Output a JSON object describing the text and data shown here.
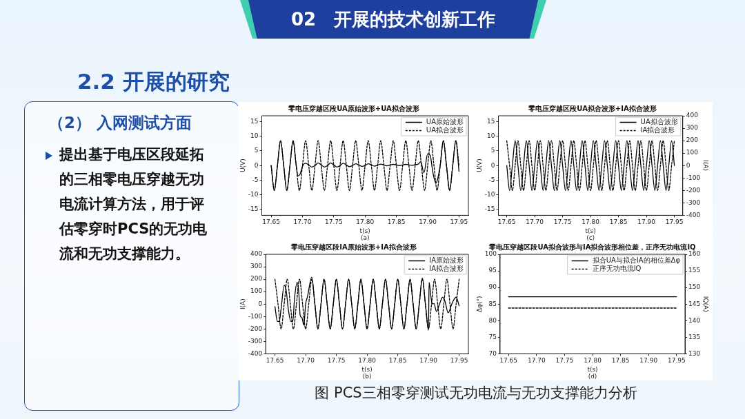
{
  "chart_data": [
    {
      "type": "other",
      "title": "02　开展的技术创新工作",
      "subtitle": "2.2 开展的研究",
      "annotations": [
        "（2） 入网测试方面",
        "提出基于电压区段延拓的三相零电压穿越无功电流计算方法，用于评估零穿时PCS的无功电流和无功支撑能力。",
        "图  PCS三相零穿测试无功电流与无功支撑能力分析"
      ]
    },
    {
      "type": "line",
      "title": "零电压穿越区段UA原始波形+UA拟合波形",
      "xlabel": "t(s)",
      "ylabel": "U(V)",
      "annotations": [
        "(a)"
      ],
      "legend": "top right",
      "xlim": [
        17.635,
        17.965
      ],
      "xticks": [
        17.65,
        {
          "value": 17.7,
          "label": "17.70"
        },
        17.75,
        {
          "value": 17.8,
          "label": "17.80"
        },
        17.85,
        {
          "value": 17.9,
          "label": "17.90"
        },
        17.95
      ],
      "ylim": [
        -17,
        17
      ],
      "yticks": [
        -15,
        -10,
        -5,
        0,
        5,
        10,
        15
      ],
      "series": [
        {
          "name": "UA原始波形",
          "color": "#000000",
          "line_style": "solid",
          "x": [
            17.65,
            17.655,
            17.66,
            17.665,
            17.67,
            17.675,
            17.68,
            17.685,
            17.69,
            17.693,
            17.696,
            17.7,
            17.705,
            17.71,
            17.715,
            17.72,
            17.725,
            17.73,
            17.735,
            17.74,
            17.745,
            17.75,
            17.755,
            17.76,
            17.765,
            17.77,
            17.775,
            17.78,
            17.785,
            17.79,
            17.795,
            17.8,
            17.805,
            17.81,
            17.815,
            17.82,
            17.825,
            17.83,
            17.835,
            17.84,
            17.845,
            17.85,
            17.855,
            17.86,
            17.865,
            17.87,
            17.875,
            17.88,
            17.885,
            17.889,
            17.894,
            17.9,
            17.904,
            17.908,
            17.913,
            17.92,
            17.925,
            17.93,
            17.935,
            17.94,
            17.945,
            17.95
          ],
          "values": [
            0,
            -8.5,
            0,
            8.5,
            0,
            -8.5,
            0,
            8.5,
            0,
            -3.5,
            -3,
            -0.3,
            0.8,
            0.2,
            -0.5,
            0,
            0.9,
            0.2,
            -0.5,
            0,
            0.9,
            0.2,
            -0.5,
            0,
            0.8,
            0.2,
            -0.4,
            0,
            0.6,
            0.2,
            -0.3,
            0,
            0.6,
            0.2,
            -0.2,
            0.1,
            0.5,
            0.2,
            -0.1,
            0.2,
            0.4,
            0.2,
            0,
            0.2,
            0.4,
            0.2,
            0.1,
            0.3,
            0.5,
            1.3,
            -2.5,
            4,
            3.5,
            -2,
            -6,
            0,
            8.5,
            0,
            -8.5,
            0,
            8.5,
            -2
          ]
        },
        {
          "name": "UA拟合波形",
          "color": "#000000",
          "line_style": "dashed",
          "x": [
            17.65,
            17.655,
            17.66,
            17.665,
            17.67,
            17.675,
            17.68,
            17.685,
            17.69,
            17.695,
            17.7,
            17.705,
            17.71,
            17.715,
            17.72,
            17.725,
            17.73,
            17.735,
            17.74,
            17.745,
            17.75,
            17.755,
            17.76,
            17.765,
            17.77,
            17.775,
            17.78,
            17.785,
            17.79,
            17.795,
            17.8,
            17.805,
            17.81,
            17.815,
            17.82,
            17.825,
            17.83,
            17.835,
            17.84,
            17.845,
            17.85,
            17.855,
            17.86,
            17.865,
            17.87,
            17.875,
            17.88,
            17.885,
            17.89,
            17.895,
            17.9,
            17.905,
            17.91,
            17.915,
            17.92,
            17.925,
            17.93,
            17.935,
            17.94,
            17.945,
            17.95
          ],
          "values": [
            0,
            -8.5,
            0,
            8.5,
            0,
            -8.5,
            0,
            8.5,
            0,
            -8.5,
            0,
            8.5,
            0,
            -8.5,
            0,
            8.5,
            0,
            -8.5,
            0,
            8.5,
            0,
            -8.5,
            0,
            8.5,
            0,
            -8.5,
            0,
            8.5,
            0,
            -8.5,
            0,
            8.5,
            0,
            -8.5,
            0,
            8.5,
            0,
            -8.5,
            0,
            8.5,
            0,
            -8.5,
            0,
            8.5,
            0,
            -8.5,
            0,
            8.5,
            0,
            -8.5,
            0,
            8.5,
            0,
            -8.5,
            0,
            8.5,
            0,
            -8.5,
            0,
            8.5,
            0
          ]
        }
      ]
    },
    {
      "type": "line",
      "title": "零电压穿越区段UA拟合波形+IA拟合波形",
      "xlabel": "t(s)",
      "ylabel": "U(V)",
      "y2label": "I(A)",
      "annotations": [
        "(c)"
      ],
      "legend": "top right",
      "xlim": [
        17.635,
        17.965
      ],
      "xticks": [
        17.65,
        {
          "value": 17.7,
          "label": "17.70"
        },
        17.75,
        {
          "value": 17.8,
          "label": "17.80"
        },
        17.85,
        {
          "value": 17.9,
          "label": "17.90"
        },
        17.95
      ],
      "ylim": [
        -17,
        17
      ],
      "yticks": [
        -15,
        -10,
        -5,
        0,
        5,
        10,
        15
      ],
      "y2lim": [
        -400,
        400
      ],
      "y2ticks": [
        -400,
        -300,
        -200,
        -100,
        0,
        100,
        200,
        300,
        400
      ],
      "x": [
        17.65,
        17.655,
        17.66,
        17.665,
        17.67,
        17.675,
        17.68,
        17.685,
        17.69,
        17.695,
        17.7,
        17.705,
        17.71,
        17.715,
        17.72,
        17.725,
        17.73,
        17.735,
        17.74,
        17.745,
        17.75,
        17.755,
        17.76,
        17.765,
        17.77,
        17.775,
        17.78,
        17.785,
        17.79,
        17.795,
        17.8,
        17.805,
        17.81,
        17.815,
        17.82,
        17.825,
        17.83,
        17.835,
        17.84,
        17.845,
        17.85,
        17.855,
        17.86,
        17.865,
        17.87,
        17.875,
        17.88,
        17.885,
        17.89,
        17.895,
        17.9,
        17.905,
        17.91,
        17.915,
        17.92,
        17.925,
        17.93,
        17.935,
        17.94,
        17.945,
        17.95
      ],
      "series": [
        {
          "name": "UA拟合波形",
          "color": "#000000",
          "line_style": "solid",
          "values": [
            0,
            -8.5,
            0,
            8.5,
            0,
            -8.5,
            0,
            8.5,
            0,
            -8.5,
            0,
            8.5,
            0,
            -8.5,
            0,
            8.5,
            0,
            -8.5,
            0,
            8.5,
            0,
            -8.5,
            0,
            8.5,
            0,
            -8.5,
            0,
            8.5,
            0,
            -8.5,
            0,
            8.5,
            0,
            -8.5,
            0,
            8.5,
            0,
            -8.5,
            0,
            8.5,
            0,
            -8.5,
            0,
            8.5,
            0,
            -8.5,
            0,
            8.5,
            0,
            -8.5,
            0,
            8.5,
            0,
            -8.5,
            0,
            8.5,
            0,
            -8.5,
            0,
            8.5,
            0
          ]
        },
        {
          "name": "IA拟合波形",
          "color": "#000000",
          "line_style": "dashed",
          "axis": "y2",
          "values": [
            200,
            0,
            -200,
            0,
            200,
            0,
            -200,
            0,
            200,
            0,
            -200,
            0,
            200,
            0,
            -200,
            0,
            200,
            0,
            -200,
            0,
            200,
            0,
            -200,
            0,
            200,
            0,
            -200,
            0,
            200,
            0,
            -200,
            0,
            200,
            0,
            -200,
            0,
            200,
            0,
            -200,
            0,
            200,
            0,
            -200,
            0,
            200,
            0,
            -200,
            0,
            200,
            0,
            -200,
            0,
            200,
            0,
            -200,
            0,
            200,
            0,
            -200,
            0,
            200
          ]
        }
      ]
    },
    {
      "type": "line",
      "title": "零电压穿越区段IA原始波形+IA拟合波形",
      "xlabel": "t(s)",
      "ylabel": "I(A)",
      "annotations": [
        "(b)"
      ],
      "legend": "top right",
      "xlim": [
        17.635,
        17.965
      ],
      "xticks": [
        17.65,
        {
          "value": 17.7,
          "label": "17.70"
        },
        17.75,
        {
          "value": 17.8,
          "label": "17.80"
        },
        17.85,
        {
          "value": 17.9,
          "label": "17.90"
        },
        17.95
      ],
      "ylim": [
        -400,
        400
      ],
      "yticks": [
        -400,
        -300,
        -200,
        -100,
        0,
        100,
        200,
        300,
        400
      ],
      "series": [
        {
          "name": "IA原始波形",
          "color": "#000000",
          "line_style": "solid",
          "x": [
            17.65,
            17.654,
            17.657,
            17.66,
            17.665,
            17.668,
            17.672,
            17.676,
            17.679,
            17.682,
            17.686,
            17.689,
            17.691,
            17.694,
            17.697,
            17.7,
            17.703,
            17.71,
            17.715,
            17.72,
            17.725,
            17.73,
            17.735,
            17.74,
            17.745,
            17.75,
            17.755,
            17.76,
            17.765,
            17.77,
            17.775,
            17.78,
            17.785,
            17.79,
            17.795,
            17.8,
            17.805,
            17.81,
            17.815,
            17.82,
            17.825,
            17.83,
            17.835,
            17.84,
            17.845,
            17.85,
            17.855,
            17.86,
            17.865,
            17.87,
            17.875,
            17.88,
            17.885,
            17.89,
            17.895,
            17.9,
            17.901,
            17.904,
            17.906,
            17.909,
            17.913,
            17.918,
            17.923,
            17.927,
            17.932,
            17.938,
            17.942,
            17.945,
            17.95
          ],
          "values": [
            -20,
            -140,
            -140,
            -40,
            150,
            120,
            -50,
            -140,
            -140,
            50,
            175,
            80,
            -90,
            -110,
            -170,
            0,
            60,
            215,
            0,
            -200,
            0,
            200,
            0,
            -200,
            0,
            200,
            0,
            -200,
            0,
            200,
            0,
            -200,
            0,
            200,
            0,
            -200,
            0,
            200,
            0,
            -200,
            0,
            200,
            0,
            -200,
            0,
            200,
            0,
            -200,
            0,
            200,
            0,
            -200,
            0,
            210,
            0,
            -210,
            175,
            60,
            0,
            5,
            -60,
            0,
            55,
            20,
            -70,
            0,
            40,
            55,
            -15
          ]
        },
        {
          "name": "IA拟合波形",
          "color": "#000000",
          "line_style": "dashed",
          "x": [
            17.65,
            17.655,
            17.66,
            17.665,
            17.67,
            17.675,
            17.68,
            17.685,
            17.69,
            17.695,
            17.7,
            17.705,
            17.71,
            17.715,
            17.72,
            17.725,
            17.73,
            17.735,
            17.74,
            17.745,
            17.75,
            17.755,
            17.76,
            17.765,
            17.77,
            17.775,
            17.78,
            17.785,
            17.79,
            17.795,
            17.8,
            17.805,
            17.81,
            17.815,
            17.82,
            17.825,
            17.83,
            17.835,
            17.84,
            17.845,
            17.85,
            17.855,
            17.86,
            17.865,
            17.87,
            17.875,
            17.88,
            17.885,
            17.89,
            17.895,
            17.9,
            17.905,
            17.91,
            17.915,
            17.92,
            17.925,
            17.93,
            17.935,
            17.94,
            17.945,
            17.95
          ],
          "values": [
            200,
            0,
            -200,
            0,
            200,
            0,
            -200,
            0,
            200,
            0,
            -200,
            0,
            200,
            0,
            -200,
            0,
            200,
            0,
            -200,
            0,
            200,
            0,
            -200,
            0,
            200,
            0,
            -200,
            0,
            200,
            0,
            -200,
            0,
            200,
            0,
            -200,
            0,
            200,
            0,
            -200,
            0,
            200,
            0,
            -200,
            0,
            200,
            0,
            -200,
            0,
            200,
            0,
            -200,
            0,
            200,
            0,
            -200,
            0,
            200,
            0,
            -200,
            0,
            200
          ]
        }
      ]
    },
    {
      "type": "line",
      "title": "零电压穿越区段UA拟合波形与IA拟合波形相位差，正序无功电流IQ",
      "xlabel": "t(s)",
      "ylabel": "Δφ(°)",
      "y2label": "IQ(A)",
      "annotations": [
        "(d)"
      ],
      "legend": "top right",
      "xlim": [
        17.635,
        17.965
      ],
      "xticks": [
        17.65,
        {
          "value": 17.7,
          "label": "17.70"
        },
        17.75,
        {
          "value": 17.8,
          "label": "17.80"
        },
        17.85,
        {
          "value": 17.9,
          "label": "17.90"
        },
        17.95
      ],
      "ylim": [
        70,
        100
      ],
      "yticks": [
        70,
        75,
        80,
        85,
        90,
        95,
        100
      ],
      "y2lim": [
        130,
        160
      ],
      "y2ticks": [
        130,
        135,
        140,
        145,
        150,
        155,
        160
      ],
      "x": [
        17.65,
        17.95
      ],
      "series": [
        {
          "name": "拟合UA与拟合IA的相位差Δφ",
          "color": "#000000",
          "line_style": "solid",
          "values": [
            87.2,
            87.2
          ]
        },
        {
          "name": "正序无功电流IQ",
          "color": "#000000",
          "line_style": "dashed",
          "axis": "y2",
          "values": [
            143.8,
            143.8
          ]
        }
      ]
    }
  ]
}
